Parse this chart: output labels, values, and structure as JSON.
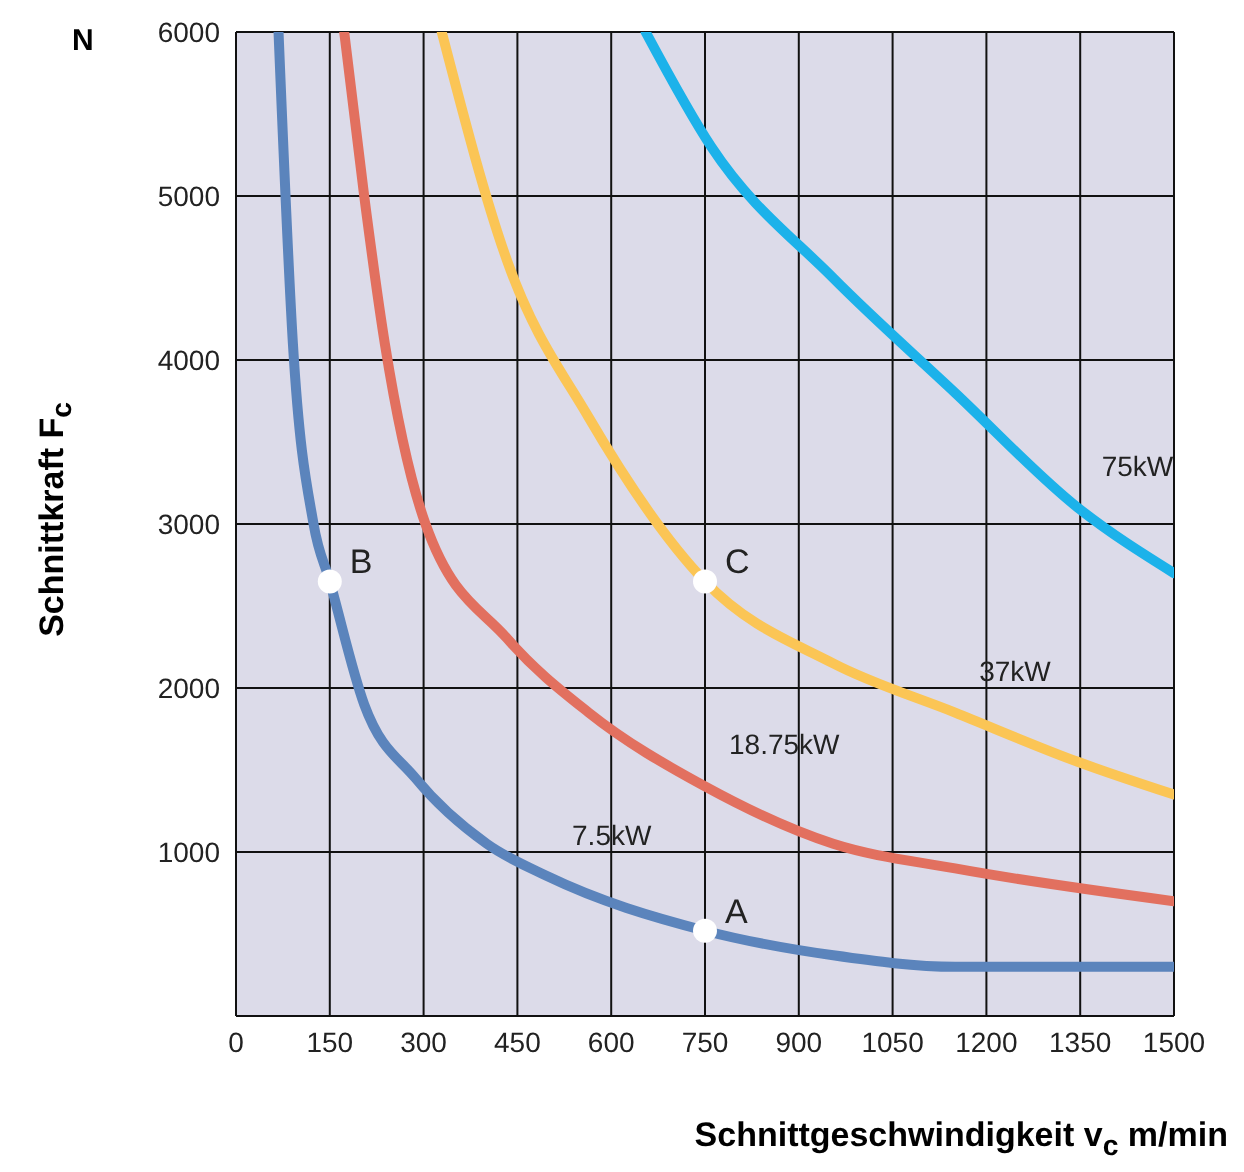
{
  "chart_data": {
    "type": "line",
    "xlabel": "Schnittgeschwindigkeit v$_{c}$ m/min",
    "ylabel": "Schnittkraft F$_{c}$",
    "xlim": [
      0,
      1500
    ],
    "ylim": [
      0,
      6000
    ],
    "xticks": [
      0,
      150,
      300,
      450,
      600,
      750,
      900,
      1050,
      1200,
      1350,
      1500
    ],
    "yticks": [
      1000,
      2000,
      3000,
      4000,
      5000,
      6000
    ],
    "grid": true,
    "legend": false,
    "line_style": "solid",
    "series": [
      {
        "name": "7.5kW",
        "color": "#5b84bc",
        "x": [
          68,
          91,
          124,
          150,
          205,
          287,
          401,
          499,
          750,
          955,
          1150,
          1500
        ],
        "values": [
          6000,
          4100,
          3000,
          2650,
          1900,
          1450,
          1050,
          850,
          520,
          370,
          300,
          300
        ]
      },
      {
        "name": "18.75kW",
        "color": "#e2705f",
        "x": [
          173,
          205,
          238,
          303,
          434,
          564,
          750,
          955,
          1150,
          1500
        ],
        "values": [
          6000,
          5000,
          4100,
          3000,
          2300,
          1850,
          1400,
          1050,
          900,
          700
        ]
      },
      {
        "name": "37kW",
        "color": "#fbc555",
        "x": [
          329,
          434,
          564,
          750,
          955,
          1150,
          1346,
          1500
        ],
        "values": [
          6000,
          4600,
          3650,
          2650,
          2150,
          1850,
          1550,
          1350
        ]
      },
      {
        "name": "75kW",
        "color": "#1cb2ea",
        "x": [
          655,
          760,
          955,
          1150,
          1346,
          1500
        ],
        "values": [
          6000,
          5300,
          4500,
          3800,
          3100,
          2700
        ]
      },
      {
        "type": "scatter",
        "marker": "circle",
        "color": "#ffffff",
        "x": [
          750,
          150,
          750
        ],
        "values": [
          520,
          2650,
          2650
        ],
        "value_labels": [
          "A",
          "B",
          "C"
        ]
      }
    ],
    "annotations": [
      "N"
    ]
  }
}
